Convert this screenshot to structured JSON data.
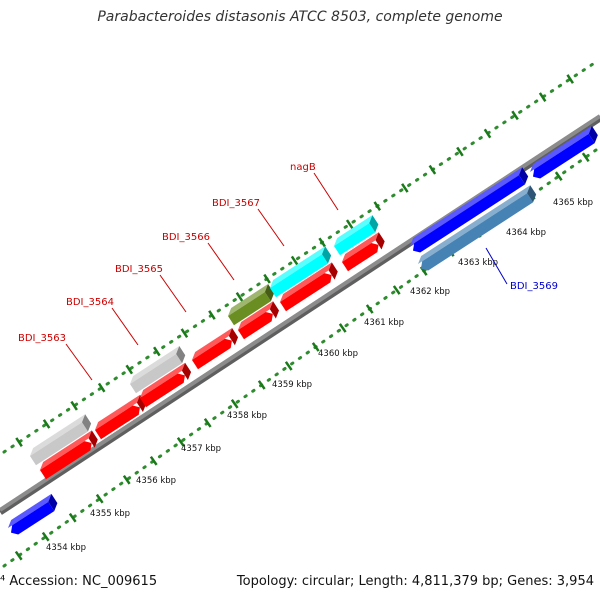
{
  "title": "Parabacteroides distasonis ATCC 8503, complete genome",
  "footer": {
    "accession": "⁴ Accession: NC_009615",
    "topology": "Topology: circular; Length: 4,811,379 bp; Genes: 3,954"
  },
  "colors": {
    "background": "#ffffff",
    "backbone": "#8c8c8c",
    "tick_dot": "#2e8b2e",
    "tick_major": "#1a7a1a",
    "gene_label_red": "#cc0000",
    "gene_label_blue": "#0000cc"
  },
  "map_data": {
    "ticks": [
      {
        "label": "4354 kbp",
        "kbp": 4354
      },
      {
        "label": "4355 kbp",
        "kbp": 4355
      },
      {
        "label": "4356 kbp",
        "kbp": 4356
      },
      {
        "label": "4357 kbp",
        "kbp": 4357
      },
      {
        "label": "4358 kbp",
        "kbp": 4358
      },
      {
        "label": "4359 kbp",
        "kbp": 4359
      },
      {
        "label": "4360 kbp",
        "kbp": 4360
      },
      {
        "label": "4361 kbp",
        "kbp": 4361
      },
      {
        "label": "4362 kbp",
        "kbp": 4362
      },
      {
        "label": "4363 kbp",
        "kbp": 4363
      },
      {
        "label": "4364 kbp",
        "kbp": 4364
      },
      {
        "label": "4365 kbp",
        "kbp": 4365
      }
    ],
    "labeled_genes": [
      {
        "name": "BDI_3563",
        "color": "#cc0000"
      },
      {
        "name": "BDI_3564",
        "color": "#cc0000"
      },
      {
        "name": "BDI_3565",
        "color": "#cc0000"
      },
      {
        "name": "BDI_3566",
        "color": "#cc0000"
      },
      {
        "name": "BDI_3567",
        "color": "#cc0000"
      },
      {
        "name": "nagB",
        "color": "#cc0000"
      },
      {
        "name": "BDI_3569",
        "color": "#0000cc"
      }
    ],
    "feature_colors": {
      "cds_forward": "#ff0000",
      "cds_reverse": "#0000ff",
      "rna_forward": "#00ffff",
      "other_gray": "#c8c8c8",
      "olive": "#6b8e23",
      "steel_blue": "#4682b4"
    }
  }
}
